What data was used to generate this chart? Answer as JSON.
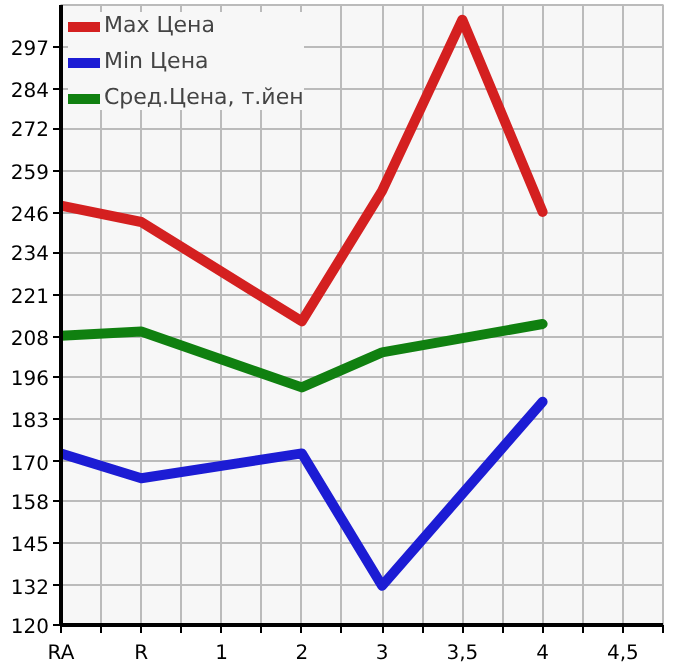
{
  "chart_data": {
    "type": "line",
    "categories": [
      "RA",
      "R",
      "1",
      "2",
      "3",
      "3,5",
      "4",
      "4,5"
    ],
    "series": [
      {
        "name": "Max Цена",
        "color": "#d42020",
        "values": [
          248.3,
          243.3,
          null,
          212.9,
          252.8,
          305.2,
          246.4,
          null
        ]
      },
      {
        "name": "Min Цена",
        "color": "#1c1cd4",
        "values": [
          172.5,
          164.9,
          null,
          172.5,
          132.0,
          null,
          188.3,
          null
        ]
      },
      {
        "name": "Сред.Цена, т.йен",
        "color": "#108010",
        "values": [
          208.5,
          209.8,
          null,
          192.7,
          203.4,
          null,
          212.1,
          null
        ]
      }
    ],
    "ylim": [
      120,
      309.7
    ],
    "yticks": [
      120,
      132,
      145,
      158,
      170,
      183,
      196,
      208,
      221,
      234,
      246,
      259,
      272,
      284,
      297
    ],
    "grid": true,
    "legend": "top left",
    "marker": "none",
    "line_style": "solid"
  }
}
